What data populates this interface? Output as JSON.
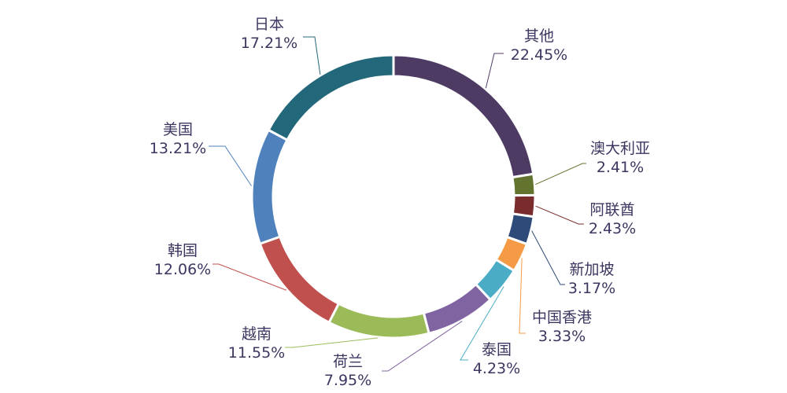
{
  "chart_data": {
    "type": "pie",
    "subtype": "donut",
    "title": "",
    "start_angle_deg": 0,
    "direction": "clockwise",
    "series": [
      {
        "name": "其他",
        "value": 22.45,
        "label": "22.45%",
        "color": "#4e3b63"
      },
      {
        "name": "澳大利亚",
        "value": 2.41,
        "label": "2.41%",
        "color": "#62742e"
      },
      {
        "name": "阿联酋",
        "value": 2.43,
        "label": "2.43%",
        "color": "#7a2b2b"
      },
      {
        "name": "新加坡",
        "value": 3.17,
        "label": "3.17%",
        "color": "#2e4a78"
      },
      {
        "name": "中国香港",
        "value": 3.33,
        "label": "3.33%",
        "color": "#f59a45"
      },
      {
        "name": "泰国",
        "value": 4.23,
        "label": "4.23%",
        "color": "#4bacc6"
      },
      {
        "name": "荷兰",
        "value": 7.95,
        "label": "7.95%",
        "color": "#8064a2"
      },
      {
        "name": "越南",
        "value": 11.55,
        "label": "11.55%",
        "color": "#9bbb59"
      },
      {
        "name": "韩国",
        "value": 12.06,
        "label": "12.06%",
        "color": "#c0504d"
      },
      {
        "name": "美国",
        "value": 13.21,
        "label": "13.21%",
        "color": "#4f81bd"
      },
      {
        "name": "日本",
        "value": 17.21,
        "label": "17.21%",
        "color": "#23687a"
      }
    ]
  }
}
